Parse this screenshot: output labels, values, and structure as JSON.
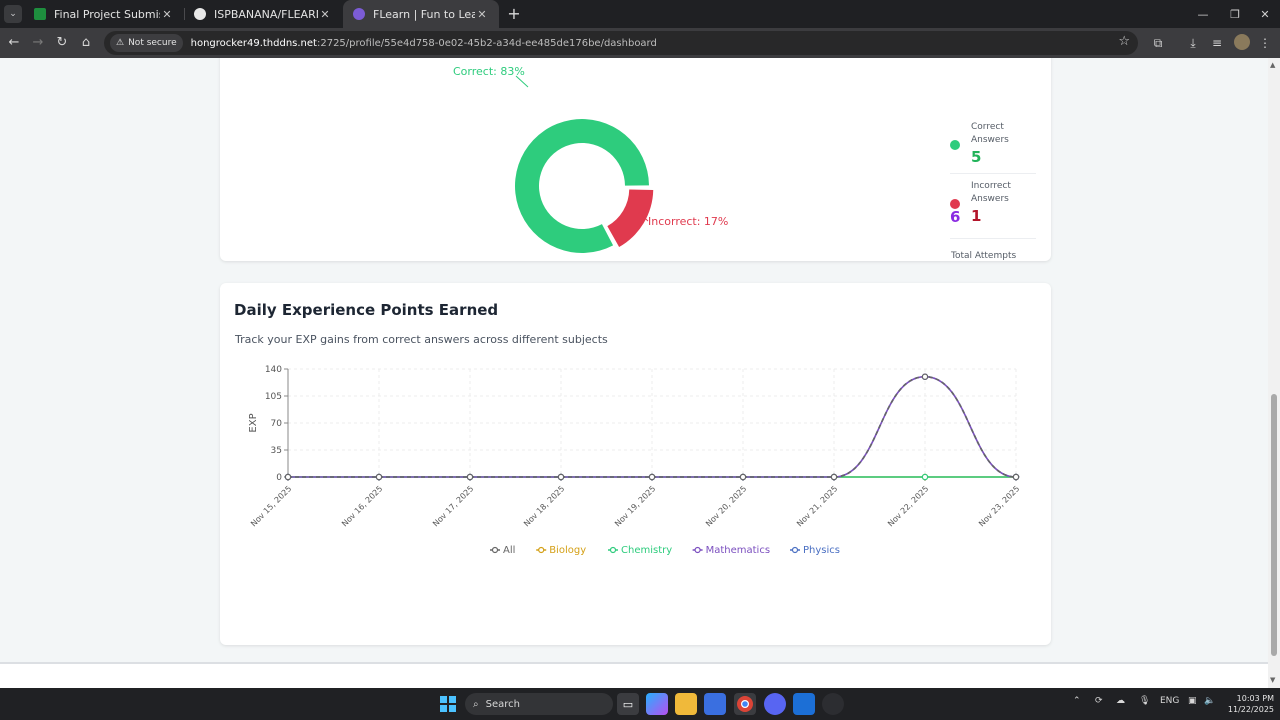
{
  "browser": {
    "tabs": [
      {
        "title": "Final Project Submission",
        "favicon_color": "#1e8e3e"
      },
      {
        "title": "ISPBANANA/FLEARN",
        "favicon_color": "#e8e8e8"
      },
      {
        "title": "FLearn | Fun to Learn",
        "favicon_color": "#7c5cd6"
      }
    ],
    "security_label": "Not secure",
    "url_host": "hongrocker49.thddns.net",
    "url_path": ":2725/profile/55e4d758-0e02-45b2-a34d-ee485de176be/dashboard"
  },
  "accuracy": {
    "correct_label": "Correct: 83%",
    "incorrect_label": "Incorrect: 17%",
    "correct_share": 83,
    "incorrect_share": 17,
    "correct_color": "#2ecc7d",
    "incorrect_color": "#e03a4e",
    "stats": {
      "correct_label": "Correct Answers",
      "correct_value": "5",
      "correct_value_color": "#22b35a",
      "incorrect_label": "Incorrect Answers",
      "incorrect_value": "1",
      "incorrect_value_color": "#b3152a",
      "total_label": "Total Attempts",
      "total_value": "6",
      "total_value_color": "#8a2be2"
    }
  },
  "daily_exp": {
    "title": "Daily Experience Points Earned",
    "subtitle": "Track your EXP gains from correct answers across different subjects"
  },
  "chart_data": {
    "type": "line",
    "x": [
      "Nov 15, 2025",
      "Nov 16, 2025",
      "Nov 17, 2025",
      "Nov 18, 2025",
      "Nov 19, 2025",
      "Nov 20, 2025",
      "Nov 21, 2025",
      "Nov 22, 2025",
      "Nov 23, 2025"
    ],
    "ylabel": "EXP",
    "ylim": [
      0,
      140
    ],
    "yticks": [
      "0",
      "35",
      "70",
      "105",
      "140"
    ],
    "grid": true,
    "legend": "bottom",
    "series": [
      {
        "name": "All",
        "color": "#666666",
        "values": [
          0,
          0,
          0,
          0,
          0,
          0,
          0,
          130,
          0
        ]
      },
      {
        "name": "Biology",
        "color": "#d4a017",
        "values": [
          0,
          0,
          0,
          0,
          0,
          0,
          0,
          0,
          0
        ]
      },
      {
        "name": "Chemistry",
        "color": "#2ecc7d",
        "values": [
          0,
          0,
          0,
          0,
          0,
          0,
          0,
          0,
          0
        ]
      },
      {
        "name": "Mathematics",
        "color": "#7b4fbf",
        "values": [
          0,
          0,
          0,
          0,
          0,
          0,
          0,
          130,
          0
        ]
      },
      {
        "name": "Physics",
        "color": "#4a6fc2",
        "values": [
          0,
          0,
          0,
          0,
          0,
          0,
          0,
          130,
          0
        ]
      }
    ]
  },
  "taskbar": {
    "search_label": "Search",
    "lang": "ENG",
    "time": "10:03 PM",
    "date": "11/22/2025"
  }
}
